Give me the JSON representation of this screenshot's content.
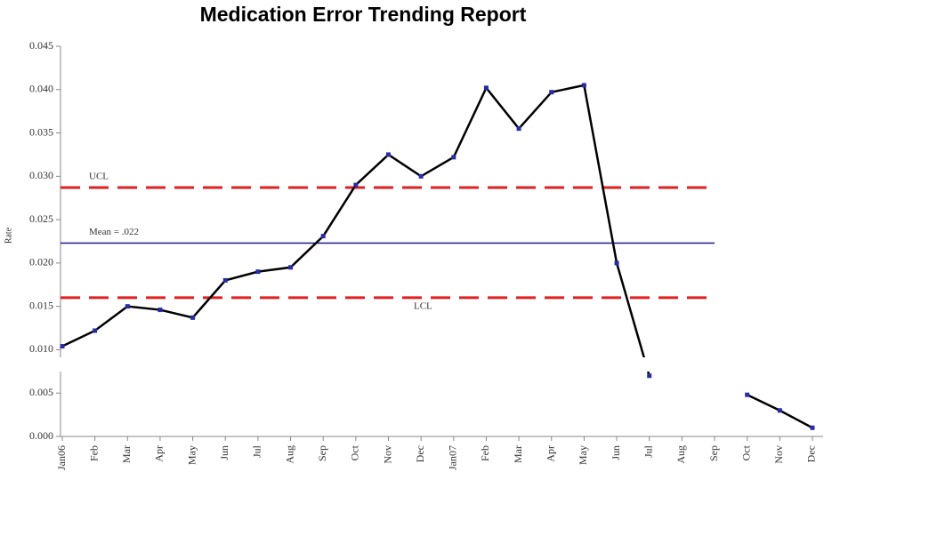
{
  "chart_data": {
    "type": "line",
    "title": "Medication Error Trending Report",
    "y_label": "Rate",
    "categories": [
      "Jan06",
      "Feb",
      "Mar",
      "Apr",
      "May",
      "Jun",
      "Jul",
      "Aug",
      "Sep",
      "Oct",
      "Nov",
      "Dec",
      "Jan07",
      "Feb",
      "Mar",
      "Apr",
      "May",
      "Jun",
      "Jul",
      "Aug",
      "Sep",
      "Oct",
      "Nov",
      "Dec"
    ],
    "series": [
      {
        "name": "Rate",
        "color": "#000000",
        "marker_color": "#2a2aa8",
        "values": [
          0.0104,
          0.0122,
          0.015,
          0.0146,
          0.0137,
          0.018,
          0.019,
          0.0195,
          0.0231,
          0.029,
          0.0325,
          0.03,
          0.0322,
          0.0402,
          0.0355,
          0.0397,
          0.0405,
          0.02,
          0.007,
          null,
          null,
          0.0048,
          0.003,
          0.001
        ]
      }
    ],
    "reference_lines": [
      {
        "name": "UCL",
        "value": 0.0287,
        "color": "#e02020",
        "style": "dashed"
      },
      {
        "name": "Mean = .022",
        "value": 0.0223,
        "color": "#1a1a8c",
        "style": "solid"
      },
      {
        "name": "LCL",
        "value": 0.016,
        "color": "#e02020",
        "style": "dashed"
      }
    ],
    "ylim": [
      0,
      0.045
    ],
    "yticks": [
      {
        "value": 0,
        "label": "0.000"
      },
      0.005,
      {
        "value": 0.01,
        "label": "0.010"
      },
      0.015,
      {
        "value": 0.02,
        "label": "0.020"
      },
      0.025,
      {
        "value": 0.03,
        "label": "0.030"
      },
      0.035,
      {
        "value": 0.04,
        "label": "0.040"
      },
      0.045
    ]
  }
}
